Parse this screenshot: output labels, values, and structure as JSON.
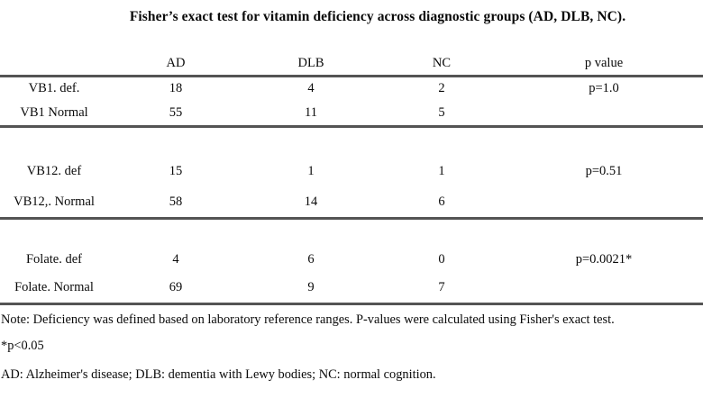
{
  "title": "Fisher’s exact test for vitamin deficiency across diagnostic groups (AD, DLB, NC).",
  "table": {
    "columns": {
      "label": "",
      "ad": "AD",
      "dlb": "DLB",
      "nc": "NC",
      "p": "p value"
    },
    "sections": [
      {
        "rows": [
          {
            "label": "VB1. def.",
            "ad": "18",
            "dlb": "4",
            "nc": "2",
            "p": "p=1.0"
          },
          {
            "label": "VB1 Normal",
            "ad": "55",
            "dlb": "11",
            "nc": "5",
            "p": ""
          }
        ]
      },
      {
        "rows": [
          {
            "label": "VB12. def",
            "ad": "15",
            "dlb": "1",
            "nc": "1",
            "p": "p=0.51"
          },
          {
            "label": "VB12,. Normal",
            "ad": "58",
            "dlb": "14",
            "nc": "6",
            "p": ""
          }
        ]
      },
      {
        "rows": [
          {
            "label": "Folate. def",
            "ad": "4",
            "dlb": "6",
            "nc": "0",
            "p": "p=0.0021*"
          },
          {
            "label": "Folate. Normal",
            "ad": "69",
            "dlb": "9",
            "nc": "7",
            "p": ""
          }
        ]
      }
    ]
  },
  "notes": {
    "main": "Note: Deficiency was defined based on laboratory reference ranges. P-values were calculated using Fisher's exact test.",
    "significance": "*p<0.05",
    "abbreviations": "AD: Alzheimer's disease; DLB: dementia with Lewy bodies; NC: normal cognition."
  }
}
